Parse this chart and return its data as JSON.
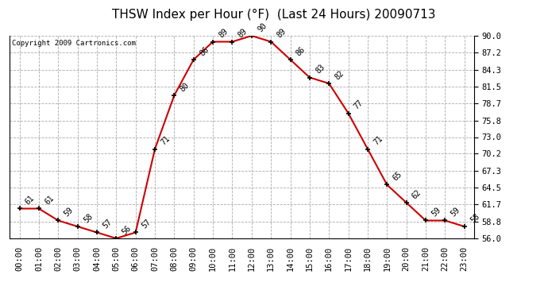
{
  "title": "THSW Index per Hour (°F)  (Last 24 Hours) 20090713",
  "copyright": "Copyright 2009 Cartronics.com",
  "hours": [
    0,
    1,
    2,
    3,
    4,
    5,
    6,
    7,
    8,
    9,
    10,
    11,
    12,
    13,
    14,
    15,
    16,
    17,
    18,
    19,
    20,
    21,
    22,
    23
  ],
  "values": [
    61,
    61,
    59,
    58,
    57,
    56,
    57,
    71,
    80,
    86,
    89,
    89,
    90,
    89,
    86,
    83,
    82,
    77,
    71,
    65,
    62,
    59,
    59,
    58
  ],
  "x_labels": [
    "00:00",
    "01:00",
    "02:00",
    "03:00",
    "04:00",
    "05:00",
    "06:00",
    "07:00",
    "08:00",
    "09:00",
    "10:00",
    "11:00",
    "12:00",
    "13:00",
    "14:00",
    "15:00",
    "16:00",
    "17:00",
    "18:00",
    "19:00",
    "20:00",
    "21:00",
    "22:00",
    "23:00"
  ],
  "y_ticks": [
    56.0,
    58.8,
    61.7,
    64.5,
    67.3,
    70.2,
    73.0,
    75.8,
    78.7,
    81.5,
    84.3,
    87.2,
    90.0
  ],
  "ylim": [
    56.0,
    90.0
  ],
  "line_color": "#cc0000",
  "bg_color": "#ffffff",
  "plot_bg_color": "#ffffff",
  "grid_color": "#aaaaaa",
  "title_fontsize": 11,
  "copyright_fontsize": 6.5,
  "label_fontsize": 7.5,
  "annotation_fontsize": 7
}
